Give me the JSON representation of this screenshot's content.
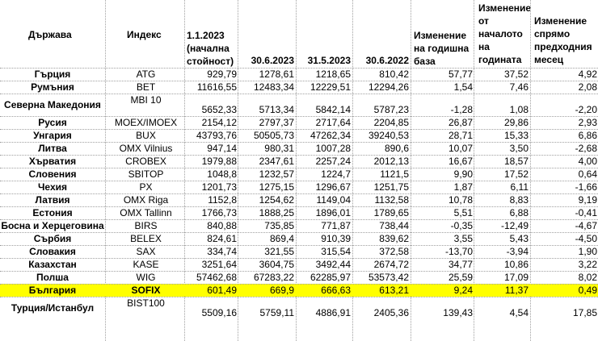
{
  "headers": {
    "country": "Държава",
    "index": "Индекс",
    "start": "1.1.2023 (начална стойност)",
    "d1": "30.6.2023",
    "d2": "31.5.2023",
    "d3": "30.6.2022",
    "chg_year": "Изменение на годишна база",
    "chg_ytd": "Изменение от началото на годината",
    "chg_month": "Изменение спрямо предходния месец"
  },
  "rows": [
    {
      "country": "Гърция",
      "index": "ATG",
      "start": "929,79",
      "d1": "1278,61",
      "d2": "1218,65",
      "d3": "810,42",
      "chg_year": "57,77",
      "chg_ytd": "37,52",
      "chg_month": "4,92"
    },
    {
      "country": "Румъния",
      "index": "BET",
      "start": "11616,55",
      "d1": "12483,34",
      "d2": "12229,51",
      "d3": "12294,26",
      "chg_year": "1,54",
      "chg_ytd": "7,46",
      "chg_month": "2,08"
    },
    {
      "country": "Северна Македония",
      "index": "MBI 10",
      "start": "5652,33",
      "d1": "5713,34",
      "d2": "5842,14",
      "d3": "5787,23",
      "chg_year": "-1,28",
      "chg_ytd": "1,08",
      "chg_month": "-2,20"
    },
    {
      "country": "Русия",
      "index": "MOEX/IMOEX",
      "start": "2154,12",
      "d1": "2797,37",
      "d2": "2717,64",
      "d3": "2204,85",
      "chg_year": "26,87",
      "chg_ytd": "29,86",
      "chg_month": "2,93"
    },
    {
      "country": "Унгария",
      "index": "BUX",
      "start": "43793,76",
      "d1": "50505,73",
      "d2": "47262,34",
      "d3": "39240,53",
      "chg_year": "28,71",
      "chg_ytd": "15,33",
      "chg_month": "6,86"
    },
    {
      "country": "Литва",
      "index": "OMX Vilnius",
      "start": "947,14",
      "d1": "980,31",
      "d2": "1007,28",
      "d3": "890,6",
      "chg_year": "10,07",
      "chg_ytd": "3,50",
      "chg_month": "-2,68"
    },
    {
      "country": "Хърватия",
      "index": "CROBEX",
      "start": "1979,88",
      "d1": "2347,61",
      "d2": "2257,24",
      "d3": "2012,13",
      "chg_year": "16,67",
      "chg_ytd": "18,57",
      "chg_month": "4,00"
    },
    {
      "country": "Словения",
      "index": "SBITOP",
      "start": "1048,8",
      "d1": "1232,57",
      "d2": "1224,7",
      "d3": "1121,5",
      "chg_year": "9,90",
      "chg_ytd": "17,52",
      "chg_month": "0,64"
    },
    {
      "country": "Чехия",
      "index": "PX",
      "start": "1201,73",
      "d1": "1275,15",
      "d2": "1296,67",
      "d3": "1251,75",
      "chg_year": "1,87",
      "chg_ytd": "6,11",
      "chg_month": "-1,66"
    },
    {
      "country": "Латвия",
      "index": "OMX Riga",
      "start": "1152,8",
      "d1": "1254,62",
      "d2": "1149,04",
      "d3": "1132,58",
      "chg_year": "10,78",
      "chg_ytd": "8,83",
      "chg_month": "9,19"
    },
    {
      "country": "Естония",
      "index": "OMX Tallinn",
      "start": "1766,73",
      "d1": "1888,25",
      "d2": "1896,01",
      "d3": "1789,65",
      "chg_year": "5,51",
      "chg_ytd": "6,88",
      "chg_month": "-0,41"
    },
    {
      "country": "Босна и Херцеговина",
      "index": "BIRS",
      "start": "840,88",
      "d1": "735,85",
      "d2": "771,87",
      "d3": "738,44",
      "chg_year": "-0,35",
      "chg_ytd": "-12,49",
      "chg_month": "-4,67"
    },
    {
      "country": "Сърбия",
      "index": "BELEX",
      "start": "824,61",
      "d1": "869,4",
      "d2": "910,39",
      "d3": "839,62",
      "chg_year": "3,55",
      "chg_ytd": "5,43",
      "chg_month": "-4,50"
    },
    {
      "country": "Словакия",
      "index": "SAX",
      "start": "334,74",
      "d1": "321,55",
      "d2": "315,54",
      "d3": "372,58",
      "chg_year": "-13,70",
      "chg_ytd": "-3,94",
      "chg_month": "1,90"
    },
    {
      "country": "Казахстан",
      "index": "KASE",
      "start": "3251,64",
      "d1": "3604,75",
      "d2": "3492,44",
      "d3": "2674,72",
      "chg_year": "34,77",
      "chg_ytd": "10,86",
      "chg_month": "3,22"
    },
    {
      "country": "Полша",
      "index": "WIG",
      "start": "57462,68",
      "d1": "67283,22",
      "d2": "62285,97",
      "d3": "53573,42",
      "chg_year": "25,59",
      "chg_ytd": "17,09",
      "chg_month": "8,02"
    },
    {
      "country": "България",
      "index": "SOFIX",
      "start": "601,49",
      "d1": "669,9",
      "d2": "666,63",
      "d3": "613,21",
      "chg_year": "9,24",
      "chg_ytd": "11,37",
      "chg_month": "0,49",
      "highlight": true
    },
    {
      "country": "Турция/Истанбул",
      "index": "BIST100",
      "start": "5509,16",
      "d1": "5759,11",
      "d2": "4886,91",
      "d3": "2405,36",
      "chg_year": "139,43",
      "chg_ytd": "4,54",
      "chg_month": "17,85"
    }
  ],
  "highlight_color": "#ffff00"
}
